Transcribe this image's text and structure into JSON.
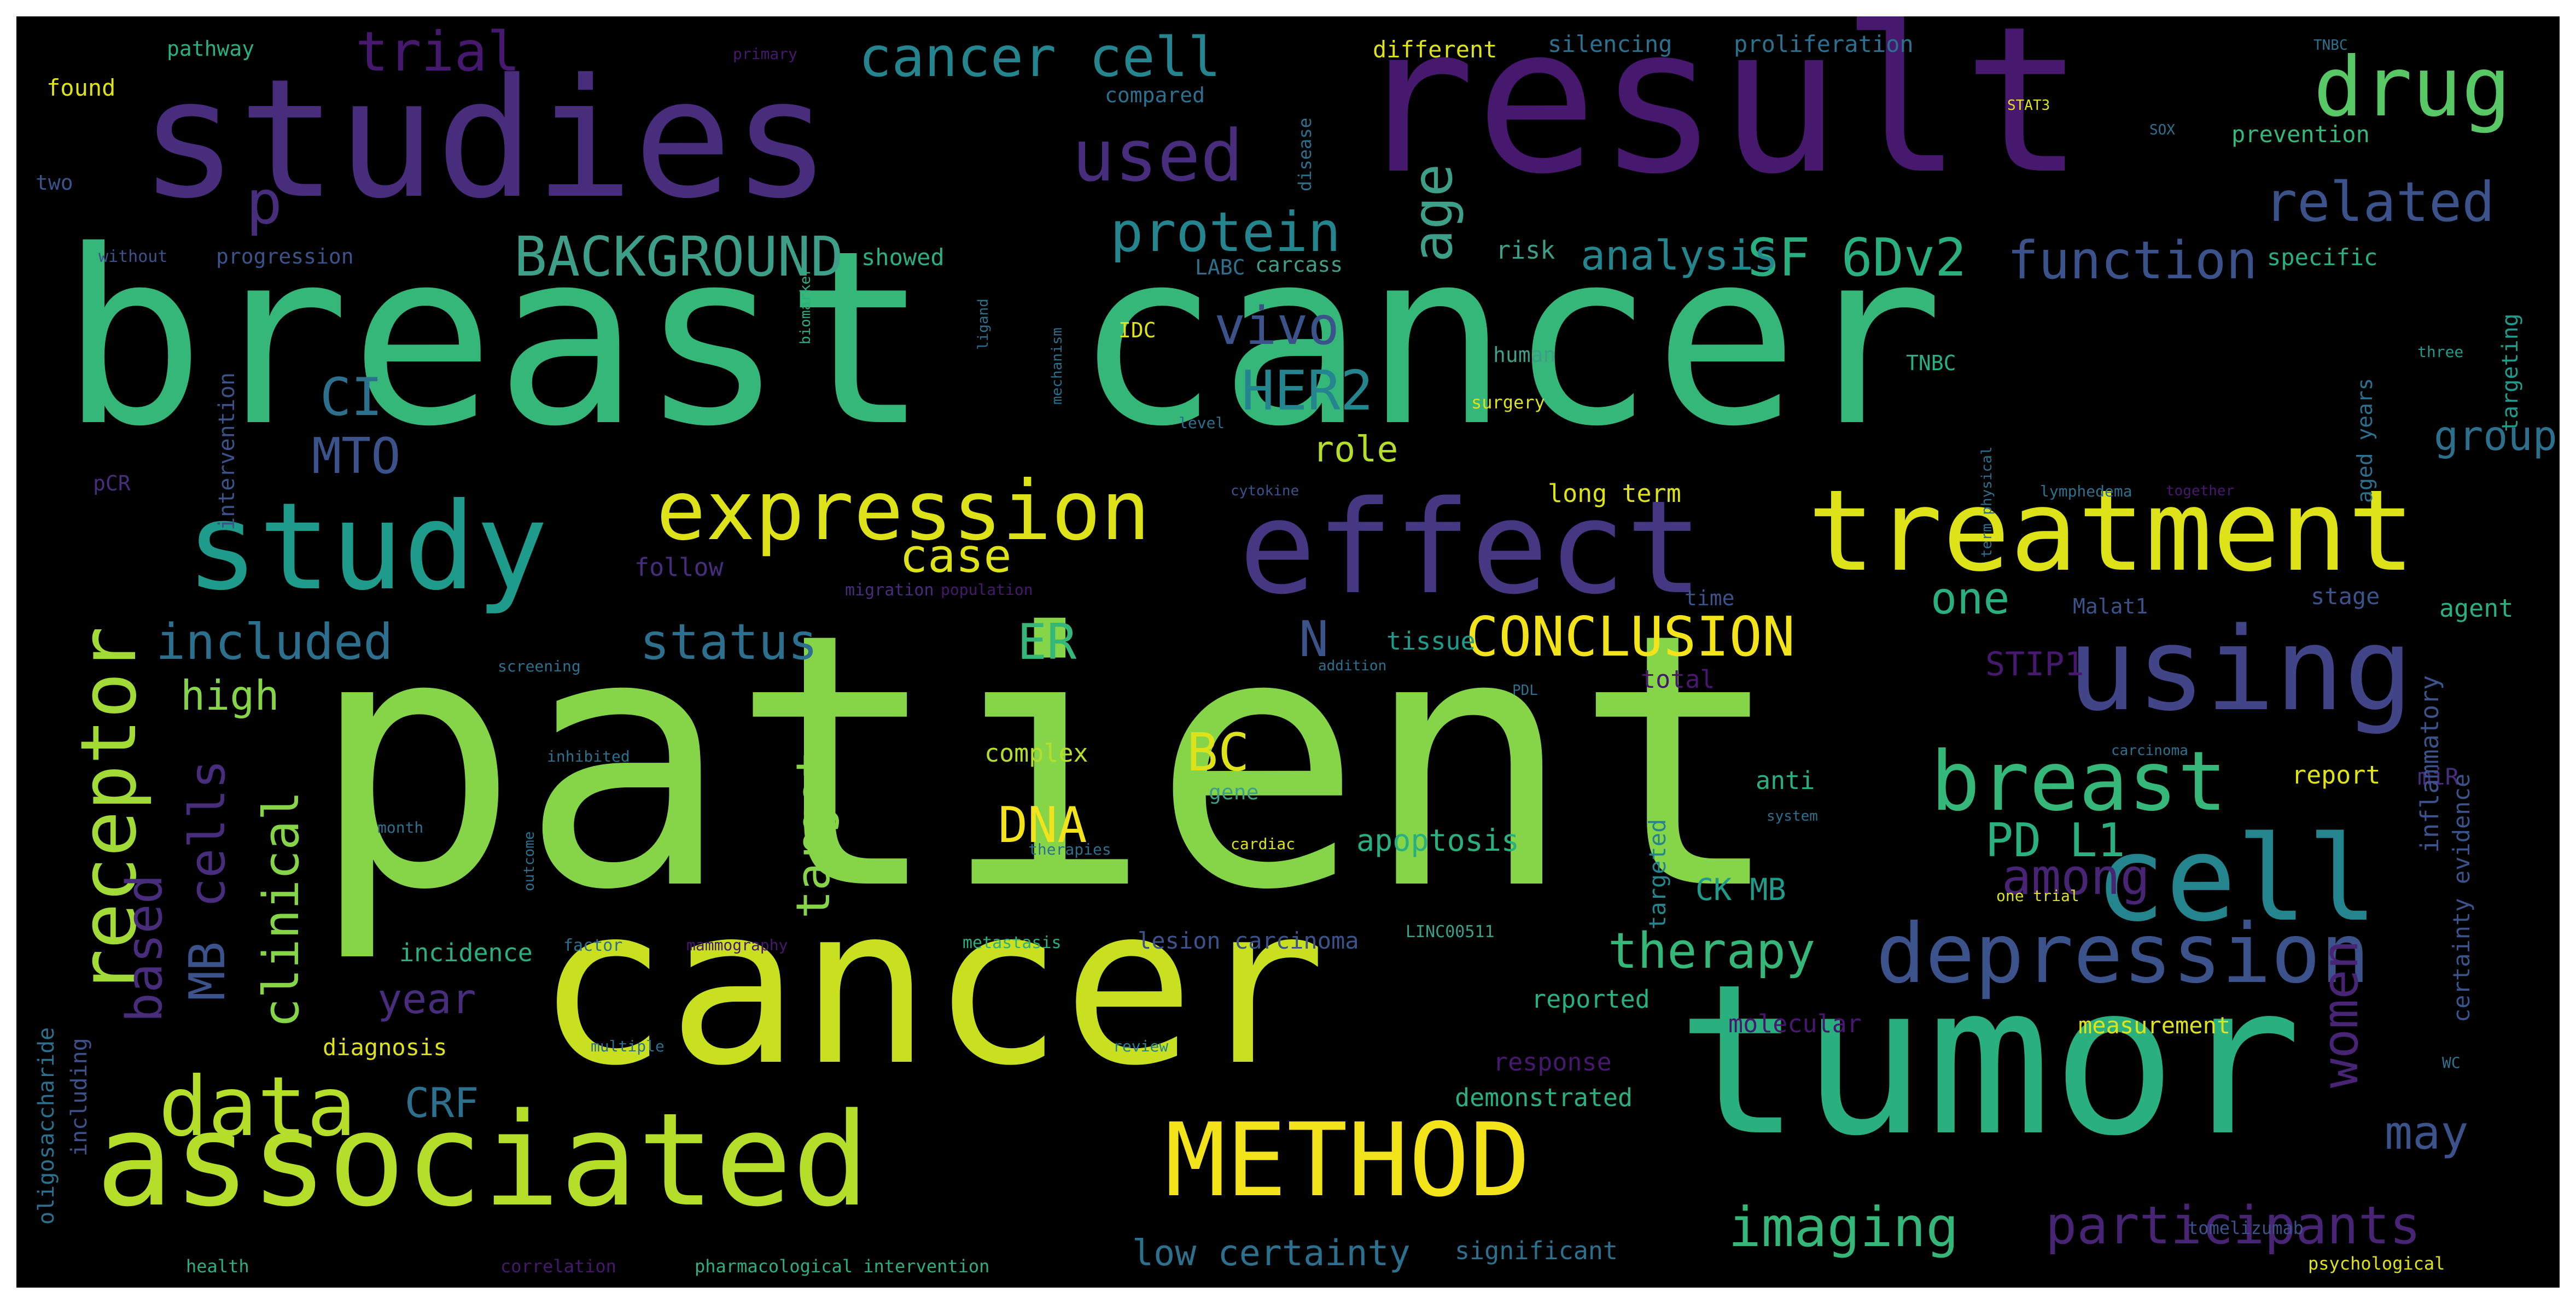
{
  "palette": {
    "purple": "#46186e",
    "indigo": "#453781",
    "slate": "#3b528b",
    "steel": "#2d708e",
    "teal": "#25858e",
    "jade": "#1e9b8a",
    "green": "#2ab07f",
    "emerald": "#35b779",
    "lime": "#86d549",
    "chartreuse": "#b5de2b",
    "yellow": "#dde318",
    "gold": "#f2e31a"
  },
  "words": {
    "patient": "patient",
    "breast_cancer": "breast cancer",
    "result": "result",
    "studies": "studies",
    "cancer": "cancer",
    "tumor": "tumor",
    "associated": "associated",
    "effect": "effect",
    "treatment": "treatment",
    "study": "study",
    "cell": "cell",
    "using": "using",
    "method": "METHOD",
    "depression": "depression",
    "expression": "expression",
    "breast": "breast",
    "data": "data",
    "receptor": "receptor",
    "drug": "drug",
    "cancer_cell": "cancer cell",
    "used": "used",
    "trial": "trial",
    "participants": "participants",
    "imaging": "imaging",
    "conclusion": "CONCLUSION",
    "background": "BACKGROUND",
    "sf6dv2": "SF 6Dv2",
    "function": "function",
    "related": "related",
    "protein": "protein",
    "analysis": "analysis",
    "age": "age",
    "p": "p",
    "vivo": "vivo",
    "her2": "HER2",
    "ci": "CI",
    "mto": "MTO",
    "role": "role",
    "case": "case",
    "included": "included",
    "status": "status",
    "er": "ER",
    "n": "N",
    "one": "one",
    "stip1": "STIP1",
    "high": "high",
    "bc": "BC",
    "dna": "DNA",
    "pd_l1": "PD L1",
    "among": "among",
    "therapy": "therapy",
    "women": "women",
    "may": "may",
    "clinical": "clinical",
    "cells": "cells",
    "mb": "MB",
    "based": "based",
    "target": "target",
    "crf": "CRF",
    "year": "year",
    "low_certainty": "low certainty",
    "group": "group",
    "apoptosis": "apoptosis",
    "incidence": "incidence",
    "diagnosis": "diagnosis",
    "molecular": "molecular",
    "measurement": "measurement",
    "response": "response",
    "demonstrated": "demonstrated",
    "significant": "significant",
    "reported": "reported",
    "complex": "complex",
    "tissue": "tissue",
    "anti": "anti",
    "report": "report",
    "total": "total",
    "long_term": "long term",
    "follow": "follow",
    "lesion_carcinoma": "lesion carcinoma",
    "different": "different",
    "silencing": "silencing",
    "proliferation": "proliferation",
    "found": "found",
    "pathway": "pathway",
    "compared": "compared",
    "prevention": "prevention",
    "progression": "progression",
    "showed": "showed",
    "risk": "risk",
    "specific": "specific",
    "carcass": "carcass",
    "labc": "LABC",
    "human": "human",
    "surgery": "surgery",
    "idc": "IDC",
    "tnbc": "TNBC",
    "malat1": "Malat1",
    "stage": "stage",
    "agent": "agent",
    "mir": "miR",
    "inflammatory": "inflammatory",
    "certainty_evidence": "certainty evidence",
    "oligosaccharide": "oligosaccharide",
    "including": "including",
    "intervention": "intervention",
    "pcr": "pCR",
    "two": "two",
    "without": "without",
    "health": "health",
    "correlation": "correlation",
    "pharmacological_intervention": "pharmacological intervention",
    "psychological": "psychological",
    "screening": "screening",
    "ck_mb": "CK MB",
    "targeted": "targeted",
    "targeting": "targeting",
    "gene": "gene",
    "time": "time",
    "migration": "migration",
    "population": "population",
    "cytokine": "cytokine",
    "lymphedema": "lymphedema",
    "together": "together",
    "metastasis": "metastasis",
    "factor": "factor",
    "mammography": "mammography",
    "cardiac": "cardiac",
    "therapies": "therapies",
    "multiple": "multiple",
    "review": "review",
    "tomelizumab": "tomelizumab",
    "disease": "disease",
    "aged_years": "aged years",
    "three": "three",
    "pdl": "PDL",
    "primary": "primary",
    "tnbc_small": "TNBC",
    "sox": "SOX",
    "stat3": "STAT3",
    "one_trial": "one trial",
    "month": "month",
    "addition": "addition",
    "inhibited": "inhibited",
    "outcome": "outcome",
    "mechanism": "mechanism",
    "lncrna": "LINC00511",
    "system": "system",
    "level": "level",
    "carcinoma_small": "carcinoma",
    "biomarker": "biomarker",
    "ligand": "ligand",
    "term_physical": "term physical",
    "wc": "WC"
  }
}
